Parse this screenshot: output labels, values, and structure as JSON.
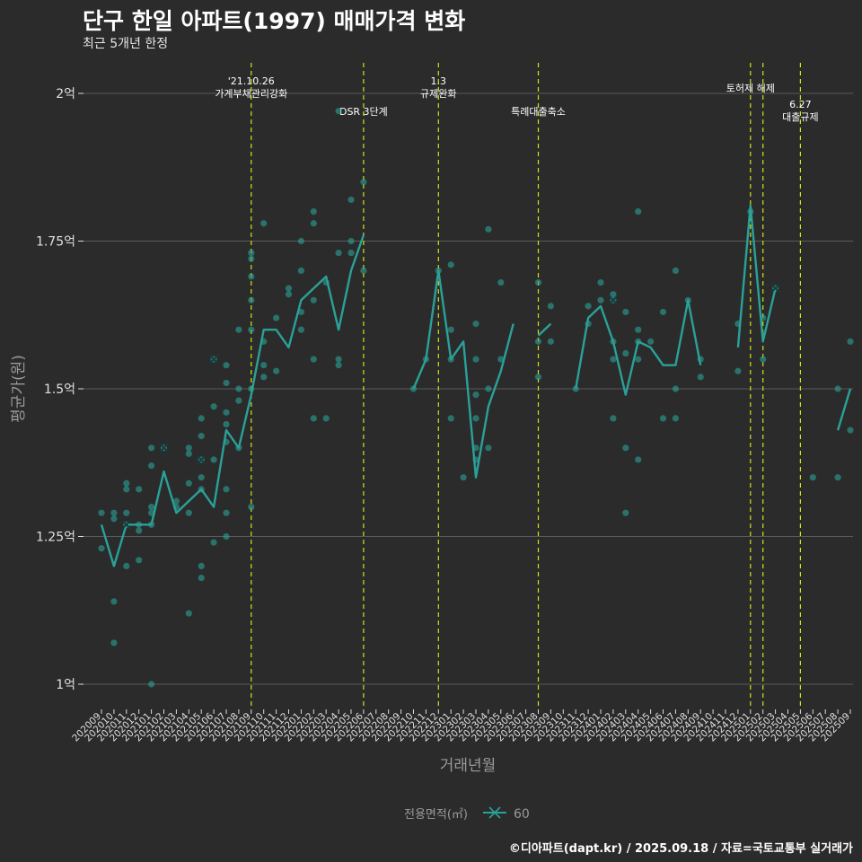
{
  "title": "단구 한일 아파트(1997) 매매가격 변화",
  "subtitle": "최근 5개년 한정",
  "footer": "©디아파트(dapt.kr) / 2025.09.18 / 자료=국토교통부 실거래가",
  "colors": {
    "background": "#2b2b2b",
    "series": "#2aa198",
    "gridline": "#5a5a5a",
    "event_line": "#d4e017",
    "text": "#ffffff",
    "muted": "#9a9a9a"
  },
  "chart_data": {
    "type": "line",
    "xlabel": "거래년월",
    "ylabel": "평균가(원)",
    "x_categories": [
      "202009",
      "202010",
      "202011",
      "202012",
      "202101",
      "202102",
      "202103",
      "202104",
      "202105",
      "202106",
      "202107",
      "202108",
      "202109",
      "202110",
      "202111",
      "202112",
      "202201",
      "202202",
      "202203",
      "202204",
      "202205",
      "202206",
      "202207",
      "202208",
      "202209",
      "202210",
      "202211",
      "202212",
      "202301",
      "202302",
      "202303",
      "202304",
      "202305",
      "202306",
      "202307",
      "202308",
      "202309",
      "202310",
      "202311",
      "202312",
      "202401",
      "202402",
      "202403",
      "202404",
      "202405",
      "202406",
      "202407",
      "202408",
      "202409",
      "202410",
      "202411",
      "202412",
      "202501",
      "202502",
      "202503",
      "202504",
      "202505",
      "202506",
      "202507",
      "202508",
      "202509"
    ],
    "y_ticks": [
      {
        "value": 1.0,
        "label": "1억"
      },
      {
        "value": 1.25,
        "label": "1.25억"
      },
      {
        "value": 1.5,
        "label": "1.5억"
      },
      {
        "value": 1.75,
        "label": "1.75억"
      },
      {
        "value": 2.0,
        "label": "2억"
      }
    ],
    "ylim": [
      0.95,
      2.05
    ],
    "legend": {
      "title": "전용면적(㎡)",
      "entries": [
        "60"
      ],
      "position": "bottom"
    },
    "series": [
      {
        "name": "60",
        "line_segments": [
          [
            [
              0,
              1.27
            ],
            [
              1,
              1.2
            ],
            [
              2,
              1.27
            ],
            [
              3,
              1.27
            ],
            [
              4,
              1.27
            ],
            [
              5,
              1.36
            ],
            [
              6,
              1.29
            ],
            [
              7,
              1.31
            ],
            [
              8,
              1.33
            ],
            [
              9,
              1.3
            ],
            [
              10,
              1.43
            ],
            [
              11,
              1.4
            ],
            [
              12,
              1.49
            ],
            [
              13,
              1.6
            ],
            [
              14,
              1.6
            ],
            [
              15,
              1.57
            ],
            [
              16,
              1.65
            ],
            [
              17,
              1.67
            ],
            [
              18,
              1.69
            ],
            [
              19,
              1.6
            ],
            [
              20,
              1.7
            ],
            [
              21,
              1.76
            ]
          ],
          [
            [
              25,
              1.5
            ],
            [
              26,
              1.55
            ],
            [
              27,
              1.7
            ],
            [
              28,
              1.55
            ],
            [
              29,
              1.58
            ],
            [
              30,
              1.35
            ],
            [
              31,
              1.47
            ],
            [
              32,
              1.53
            ],
            [
              33,
              1.61
            ]
          ],
          [
            [
              35,
              1.59
            ],
            [
              36,
              1.61
            ]
          ],
          [
            [
              38,
              1.5
            ],
            [
              39,
              1.62
            ],
            [
              40,
              1.64
            ],
            [
              41,
              1.58
            ],
            [
              42,
              1.49
            ],
            [
              43,
              1.58
            ],
            [
              44,
              1.57
            ],
            [
              45,
              1.54
            ],
            [
              46,
              1.54
            ],
            [
              47,
              1.65
            ],
            [
              48,
              1.54
            ]
          ],
          [
            [
              51,
              1.57
            ],
            [
              52,
              1.81
            ],
            [
              53,
              1.58
            ],
            [
              54,
              1.67
            ]
          ],
          [
            [
              59,
              1.43
            ],
            [
              60,
              1.5
            ]
          ]
        ],
        "points": [
          [
            0,
            1.29
          ],
          [
            0,
            1.23
          ],
          [
            1,
            1.29
          ],
          [
            1,
            1.28
          ],
          [
            1,
            1.14
          ],
          [
            1,
            1.07
          ],
          [
            2,
            1.34
          ],
          [
            2,
            1.33
          ],
          [
            2,
            1.29
          ],
          [
            2,
            1.2
          ],
          [
            2,
            1.27
          ],
          [
            3,
            1.33
          ],
          [
            3,
            1.27
          ],
          [
            3,
            1.26
          ],
          [
            3,
            1.21
          ],
          [
            4,
            1.37
          ],
          [
            4,
            1.3
          ],
          [
            4,
            1.29
          ],
          [
            4,
            1.27
          ],
          [
            4,
            1.0
          ],
          [
            4,
            1.4
          ],
          [
            5,
            1.4
          ],
          [
            6,
            1.31
          ],
          [
            6,
            1.3
          ],
          [
            7,
            1.4
          ],
          [
            7,
            1.39
          ],
          [
            7,
            1.34
          ],
          [
            7,
            1.12
          ],
          [
            7,
            1.29
          ],
          [
            8,
            1.45
          ],
          [
            8,
            1.42
          ],
          [
            8,
            1.35
          ],
          [
            8,
            1.33
          ],
          [
            8,
            1.2
          ],
          [
            8,
            1.18
          ],
          [
            8,
            1.38
          ],
          [
            9,
            1.55
          ],
          [
            9,
            1.47
          ],
          [
            9,
            1.38
          ],
          [
            9,
            1.24
          ],
          [
            10,
            1.54
          ],
          [
            10,
            1.51
          ],
          [
            10,
            1.46
          ],
          [
            10,
            1.44
          ],
          [
            10,
            1.41
          ],
          [
            10,
            1.33
          ],
          [
            10,
            1.29
          ],
          [
            10,
            1.25
          ],
          [
            11,
            1.6
          ],
          [
            11,
            1.5
          ],
          [
            11,
            1.48
          ],
          [
            11,
            1.4
          ],
          [
            12,
            1.73
          ],
          [
            12,
            1.72
          ],
          [
            12,
            1.69
          ],
          [
            12,
            1.65
          ],
          [
            12,
            1.6
          ],
          [
            12,
            1.5
          ],
          [
            12,
            1.3
          ],
          [
            13,
            1.78
          ],
          [
            13,
            1.58
          ],
          [
            13,
            1.54
          ],
          [
            13,
            1.52
          ],
          [
            14,
            1.62
          ],
          [
            14,
            1.53
          ],
          [
            15,
            1.67
          ],
          [
            15,
            1.66
          ],
          [
            16,
            1.75
          ],
          [
            16,
            1.7
          ],
          [
            16,
            1.63
          ],
          [
            16,
            1.6
          ],
          [
            17,
            1.8
          ],
          [
            17,
            1.78
          ],
          [
            17,
            1.65
          ],
          [
            17,
            1.55
          ],
          [
            17,
            1.45
          ],
          [
            18,
            1.68
          ],
          [
            18,
            1.45
          ],
          [
            19,
            1.97
          ],
          [
            19,
            1.73
          ],
          [
            19,
            1.55
          ],
          [
            19,
            1.54
          ],
          [
            20,
            1.82
          ],
          [
            20,
            1.75
          ],
          [
            20,
            1.73
          ],
          [
            21,
            1.85
          ],
          [
            21,
            1.7
          ],
          [
            25,
            1.5
          ],
          [
            26,
            1.55
          ],
          [
            27,
            1.7
          ],
          [
            28,
            1.71
          ],
          [
            28,
            1.6
          ],
          [
            28,
            1.55
          ],
          [
            28,
            1.45
          ],
          [
            29,
            1.35
          ],
          [
            30,
            1.61
          ],
          [
            30,
            1.55
          ],
          [
            30,
            1.49
          ],
          [
            30,
            1.45
          ],
          [
            30,
            1.4
          ],
          [
            30,
            1.38
          ],
          [
            31,
            1.77
          ],
          [
            31,
            1.5
          ],
          [
            31,
            1.4
          ],
          [
            32,
            1.68
          ],
          [
            32,
            1.55
          ],
          [
            35,
            1.68
          ],
          [
            35,
            1.58
          ],
          [
            35,
            1.52
          ],
          [
            36,
            1.64
          ],
          [
            36,
            1.58
          ],
          [
            38,
            1.5
          ],
          [
            39,
            1.64
          ],
          [
            39,
            1.61
          ],
          [
            40,
            1.68
          ],
          [
            40,
            1.65
          ],
          [
            41,
            1.66
          ],
          [
            41,
            1.65
          ],
          [
            41,
            1.58
          ],
          [
            41,
            1.55
          ],
          [
            41,
            1.45
          ],
          [
            42,
            1.63
          ],
          [
            42,
            1.56
          ],
          [
            42,
            1.4
          ],
          [
            42,
            1.29
          ],
          [
            43,
            1.8
          ],
          [
            43,
            1.6
          ],
          [
            43,
            1.58
          ],
          [
            43,
            1.55
          ],
          [
            43,
            1.38
          ],
          [
            44,
            1.58
          ],
          [
            45,
            1.63
          ],
          [
            45,
            1.45
          ],
          [
            46,
            1.7
          ],
          [
            46,
            1.5
          ],
          [
            46,
            1.45
          ],
          [
            47,
            1.65
          ],
          [
            48,
            1.55
          ],
          [
            48,
            1.52
          ],
          [
            51,
            1.61
          ],
          [
            51,
            1.53
          ],
          [
            52,
            1.8
          ],
          [
            53,
            1.62
          ],
          [
            53,
            1.55
          ],
          [
            54,
            1.67
          ],
          [
            57,
            1.35
          ],
          [
            59,
            1.5
          ],
          [
            59,
            1.35
          ],
          [
            60,
            1.58
          ],
          [
            60,
            1.43
          ]
        ],
        "cross_markers": [
          [
            2,
            1.27
          ],
          [
            5,
            1.4
          ],
          [
            8,
            1.38
          ],
          [
            9,
            1.55
          ],
          [
            41,
            1.65
          ],
          [
            54,
            1.67
          ]
        ]
      }
    ],
    "events": [
      {
        "x": 12.0,
        "lines": [
          "'21.10.26",
          "가계부채관리강화"
        ],
        "row": 0
      },
      {
        "x": 21.0,
        "lines": [
          "DSR 3단계"
        ],
        "row": 1
      },
      {
        "x": 27.0,
        "lines": [
          "1.3",
          "규제완화"
        ],
        "row": 0
      },
      {
        "x": 35.0,
        "lines": [
          "특례대출축소"
        ],
        "row": 1
      },
      {
        "x": 52.0,
        "lines": [
          "토허제 해제"
        ],
        "row": 2
      },
      {
        "x": 53.0,
        "lines": [],
        "row": 2
      },
      {
        "x": 56.0,
        "lines": [
          "6.27",
          "대출규제"
        ],
        "row": 3
      }
    ]
  }
}
